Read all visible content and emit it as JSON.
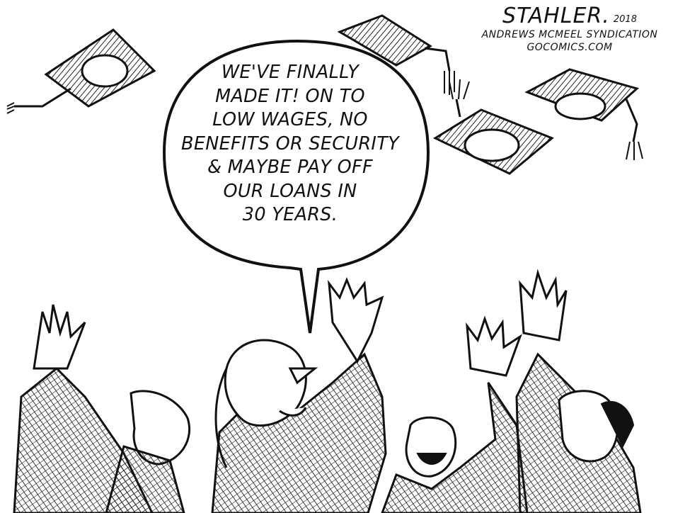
{
  "credit": {
    "artist": "STAHLER.",
    "year": "2018",
    "syndicate": "ANDREWS MCMEEL SYNDICATION",
    "site": "GOCOMICS.COM"
  },
  "speech_bubble": {
    "lines": [
      "WE'VE FINALLY",
      "MADE IT! ON TO",
      "LOW WAGES, NO",
      "BENEFITS OR SECURITY",
      "& MAYBE PAY OFF",
      "OUR LOANS IN",
      "30 YEARS."
    ]
  },
  "colors": {
    "ink": "#111111",
    "paper": "#ffffff",
    "hatch": "#444444"
  }
}
